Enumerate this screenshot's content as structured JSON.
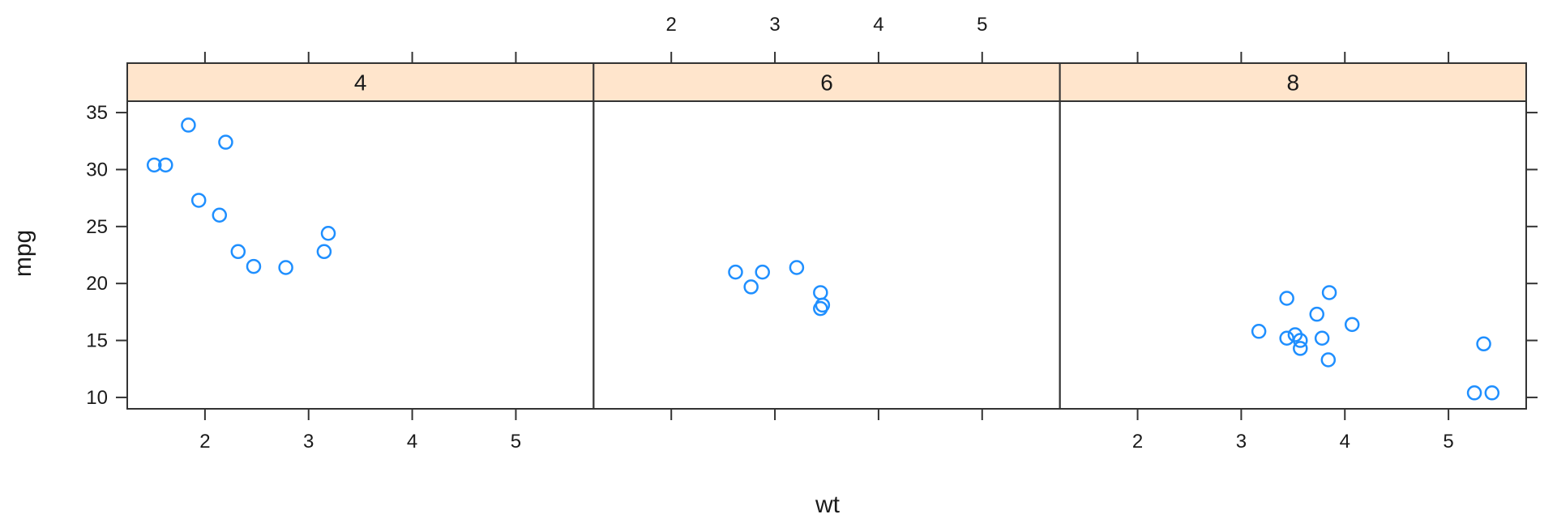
{
  "colors": {
    "strip_fill": "#ffe5cc",
    "point_stroke": "#1f8fff",
    "frame": "#333333",
    "background": "#ffffff"
  },
  "chart_data": {
    "type": "scatter",
    "layout": "trellis panels in one row, shared axes",
    "xlabel": "wt",
    "ylabel": "mpg",
    "xlim": [
      1.25,
      5.75
    ],
    "ylim": [
      9,
      36
    ],
    "x_ticks": [
      2,
      3,
      4,
      5
    ],
    "y_ticks": [
      10,
      15,
      20,
      25,
      30,
      35
    ],
    "grid": false,
    "marker": "open circle",
    "panels": [
      {
        "strip": "4",
        "points": [
          {
            "x": 1.51,
            "y": 30.4
          },
          {
            "x": 1.62,
            "y": 30.4
          },
          {
            "x": 1.84,
            "y": 33.9
          },
          {
            "x": 1.94,
            "y": 27.3
          },
          {
            "x": 2.14,
            "y": 26.0
          },
          {
            "x": 2.2,
            "y": 32.4
          },
          {
            "x": 2.32,
            "y": 22.8
          },
          {
            "x": 2.47,
            "y": 21.5
          },
          {
            "x": 2.78,
            "y": 21.4
          },
          {
            "x": 3.15,
            "y": 22.8
          },
          {
            "x": 3.19,
            "y": 24.4
          }
        ]
      },
      {
        "strip": "6",
        "points": [
          {
            "x": 2.62,
            "y": 21.0
          },
          {
            "x": 2.77,
            "y": 19.7
          },
          {
            "x": 2.88,
            "y": 21.0
          },
          {
            "x": 3.21,
            "y": 21.4
          },
          {
            "x": 3.44,
            "y": 19.2
          },
          {
            "x": 3.44,
            "y": 17.8
          },
          {
            "x": 3.46,
            "y": 18.1
          }
        ]
      },
      {
        "strip": "8",
        "points": [
          {
            "x": 3.17,
            "y": 15.8
          },
          {
            "x": 3.44,
            "y": 18.7
          },
          {
            "x": 3.44,
            "y": 15.2
          },
          {
            "x": 3.52,
            "y": 15.5
          },
          {
            "x": 3.57,
            "y": 14.3
          },
          {
            "x": 3.57,
            "y": 15.0
          },
          {
            "x": 3.73,
            "y": 17.3
          },
          {
            "x": 3.78,
            "y": 15.2
          },
          {
            "x": 3.84,
            "y": 13.3
          },
          {
            "x": 3.85,
            "y": 19.2
          },
          {
            "x": 4.07,
            "y": 16.4
          },
          {
            "x": 5.25,
            "y": 10.4
          },
          {
            "x": 5.34,
            "y": 14.7
          },
          {
            "x": 5.42,
            "y": 10.4
          }
        ]
      }
    ]
  }
}
